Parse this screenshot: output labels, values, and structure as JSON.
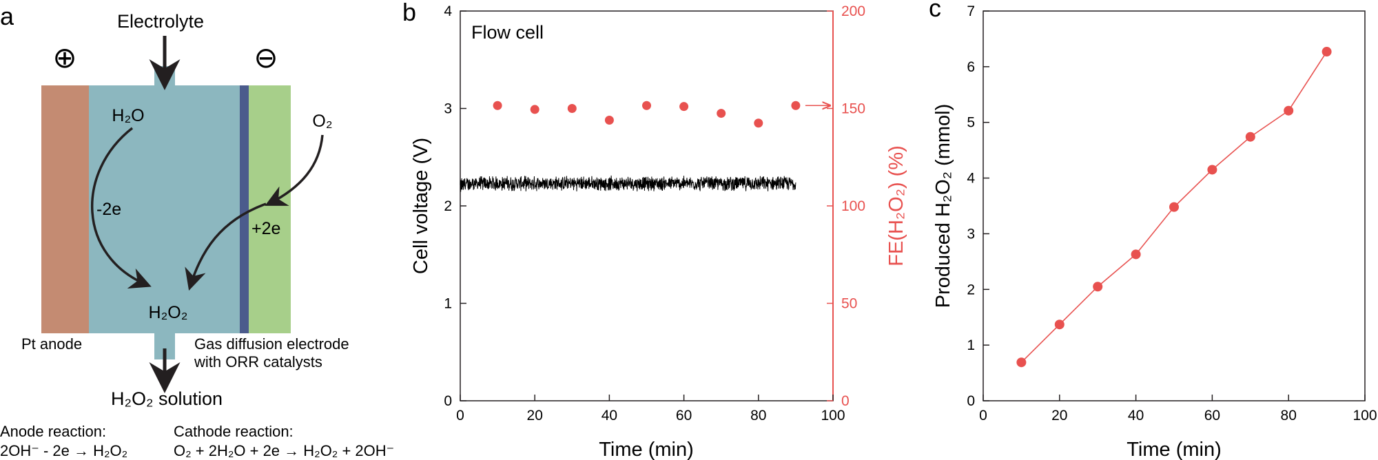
{
  "panel_a": {
    "letter": "a",
    "plus_symbol": "⊕",
    "minus_symbol": "⊖",
    "electrolyte_label": "Electrolyte",
    "water_label": "H₂O",
    "oxygen_label": "O₂",
    "minus_2e_label": "-2e",
    "plus_2e_label": "+2e",
    "peroxide_label": "H₂O₂",
    "anode_label": "Pt anode",
    "gde_label_line1": "Gas diffusion electrode",
    "gde_label_line2": "with ORR catalysts",
    "solution_label": "H₂O₂ solution",
    "anode_reaction_title": "Anode reaction:",
    "anode_reaction": "2OH⁻ - 2e → H₂O₂",
    "cathode_reaction_title": "Cathode reaction:",
    "cathode_reaction": "O₂ + 2H₂O + 2e → H₂O₂ + 2OH⁻",
    "colors": {
      "anode": "#c48b72",
      "electrolyte": "#8cb7bf",
      "membrane": "#4b5b8c",
      "gde": "#a7cf8a",
      "arrow": "#231f20"
    }
  },
  "chart_data": [
    {
      "panel": "b",
      "type": "scatter",
      "annotation": "Flow cell",
      "xlabel": "Time (min)",
      "ylabel_left": "Cell voltage (V)",
      "ylabel_right": "FE(H₂O₂) (%)",
      "xlim": [
        0,
        100
      ],
      "ylim_left": [
        0,
        4
      ],
      "ylim_right": [
        0,
        200
      ],
      "xticks": [
        "0",
        "20",
        "40",
        "60",
        "80",
        "100"
      ],
      "yticks_left": [
        "0",
        "1",
        "2",
        "3",
        "4"
      ],
      "yticks_right": [
        "0",
        "50",
        "100",
        "150",
        "200"
      ],
      "series": [
        {
          "name": "Cell voltage",
          "axis": "left",
          "style": "line",
          "color": "#000000",
          "x_range": [
            0,
            90
          ],
          "mean": 2.23,
          "noise": 0.07
        },
        {
          "name": "FE(H₂O₂)",
          "axis": "right",
          "style": "scatter",
          "color": "#e8514f",
          "x": [
            10,
            20,
            30,
            40,
            50,
            60,
            70,
            80,
            90
          ],
          "values": [
            151.5,
            149.5,
            150,
            144,
            151.5,
            151,
            147.5,
            142.5,
            151.5
          ]
        }
      ]
    },
    {
      "panel": "c",
      "type": "line",
      "xlabel": "Time (min)",
      "ylabel": "Produced H₂O₂ (mmol)",
      "xlim": [
        0,
        100
      ],
      "ylim": [
        0,
        7
      ],
      "xticks": [
        "0",
        "20",
        "40",
        "60",
        "80",
        "100"
      ],
      "yticks": [
        "0",
        "1",
        "2",
        "3",
        "4",
        "5",
        "6",
        "7"
      ],
      "series": [
        {
          "name": "Produced H₂O₂",
          "color": "#e8514f",
          "x": [
            10,
            20,
            30,
            40,
            50,
            60,
            70,
            80,
            90
          ],
          "values": [
            0.69,
            1.37,
            2.05,
            2.63,
            3.48,
            4.15,
            4.74,
            5.21,
            6.27
          ]
        }
      ]
    }
  ]
}
